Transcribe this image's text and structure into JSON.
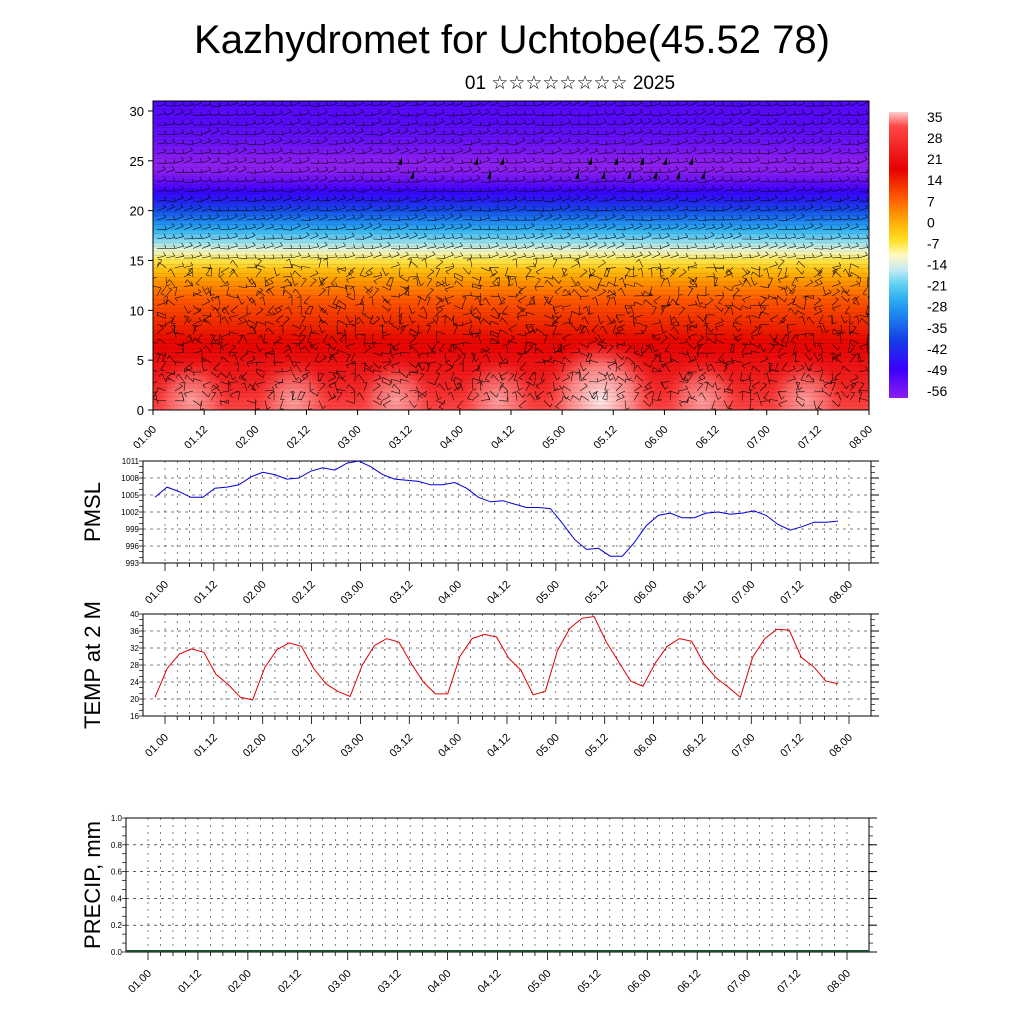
{
  "title": "Kazhydromet for Uchtobe(45.52 78)",
  "subtitle": "01 ☆☆☆☆☆☆☆☆ 2025",
  "colorbar": {
    "labels": [
      "35",
      "28",
      "21",
      "14",
      "7",
      "0",
      "-7",
      "-14",
      "-21",
      "-28",
      "-35",
      "-42",
      "-49",
      "-56"
    ]
  },
  "chart_data": [
    {
      "type": "heatmap",
      "name": "cross-section",
      "xlabel": "",
      "ylabel": "",
      "x_ticks": [
        "01.00",
        "01.12",
        "02.00",
        "02.12",
        "03.00",
        "03.12",
        "04.00",
        "04.12",
        "05.00",
        "05.12",
        "06.00",
        "06.12",
        "07.00",
        "07.12",
        "08.00"
      ],
      "y_ticks": [
        "0",
        "5",
        "10",
        "15",
        "20",
        "25",
        "30"
      ],
      "ylim": [
        0,
        31
      ],
      "value_range": [
        -56,
        35
      ],
      "note_series": "shaded temperature (degC) with wind barbs",
      "levels": [
        0,
        1,
        2,
        3,
        4,
        5,
        6,
        7,
        8,
        9,
        10,
        11,
        12,
        13,
        14,
        15,
        16,
        17,
        18,
        19,
        20,
        21,
        22,
        23,
        24,
        25,
        26,
        27,
        28,
        29,
        30,
        31
      ],
      "temperature_profile": [
        30,
        28,
        25,
        23,
        21,
        20,
        18,
        16,
        14,
        12,
        10,
        8,
        5,
        2,
        -2,
        -7,
        -12,
        -18,
        -24,
        -30,
        -36,
        -42,
        -47,
        -52,
        -56,
        -56,
        -54,
        -52,
        -51,
        -50,
        -50,
        -49
      ]
    },
    {
      "type": "line",
      "ylabel": "PMSL",
      "x_ticks": [
        "01.00",
        "01.12",
        "02.00",
        "02.12",
        "03.00",
        "03.12",
        "04.00",
        "04.12",
        "05.00",
        "05.12",
        "06.00",
        "06.12",
        "07.00",
        "07.12",
        "08.00"
      ],
      "y_ticks": [
        "1011",
        "1008",
        "1005",
        "1002",
        "999",
        "996",
        "993"
      ],
      "ylim": [
        993,
        1011
      ],
      "line_color": "#0000dd",
      "values": [
        1004.6,
        1006.4,
        1005.6,
        1004.6,
        1004.6,
        1006.2,
        1006.4,
        1006.8,
        1008.2,
        1009.0,
        1008.6,
        1007.8,
        1008.0,
        1009.2,
        1009.8,
        1009.4,
        1010.6,
        1011.0,
        1010.0,
        1008.6,
        1007.8,
        1007.6,
        1007.4,
        1006.8,
        1006.8,
        1007.2,
        1006.2,
        1004.6,
        1003.8,
        1004.0,
        1003.4,
        1002.8,
        1002.8,
        1002.6,
        1000.0,
        997.2,
        995.4,
        995.6,
        994.2,
        994.2,
        996.6,
        999.6,
        1001.4,
        1001.8,
        1001.0,
        1001.0,
        1001.8,
        1002.0,
        1001.6,
        1001.8,
        1002.2,
        1001.4,
        999.8,
        998.8,
        999.4,
        1000.2,
        1000.2,
        1000.4
      ]
    },
    {
      "type": "line",
      "ylabel": "TEMP at 2 M",
      "x_ticks": [
        "01.00",
        "01.12",
        "02.00",
        "02.12",
        "03.00",
        "03.12",
        "04.00",
        "04.12",
        "05.00",
        "05.12",
        "06.00",
        "06.12",
        "07.00",
        "07.12",
        "08.00"
      ],
      "y_ticks": [
        "40",
        "36",
        "32",
        "28",
        "24",
        "20",
        "16"
      ],
      "ylim": [
        16,
        40
      ],
      "line_color": "#dd0000",
      "values": [
        20.4,
        27.2,
        30.6,
        31.8,
        31.0,
        25.8,
        23.4,
        20.4,
        19.8,
        27.4,
        31.6,
        33.2,
        32.4,
        27.2,
        23.6,
        21.8,
        20.6,
        28.0,
        32.6,
        34.2,
        33.4,
        28.4,
        24.0,
        21.2,
        21.2,
        30.0,
        34.2,
        35.2,
        34.6,
        29.6,
        26.8,
        21.0,
        21.8,
        31.4,
        36.6,
        39.0,
        39.4,
        33.4,
        28.8,
        24.2,
        23.0,
        28.4,
        32.4,
        34.2,
        33.6,
        28.4,
        25.0,
        22.8,
        20.4,
        29.8,
        34.2,
        36.4,
        36.2,
        29.8,
        27.6,
        24.2,
        23.6
      ]
    },
    {
      "type": "bar",
      "ylabel": "PRECIP, mm",
      "x_ticks": [
        "01.00",
        "01.12",
        "02.00",
        "02.12",
        "03.00",
        "03.12",
        "04.00",
        "04.12",
        "05.00",
        "05.12",
        "06.00",
        "06.12",
        "07.00",
        "07.12",
        "08.00"
      ],
      "y_ticks": [
        "1.0",
        "0.8",
        "0.6",
        "0.4",
        "0.2",
        "0.0"
      ],
      "ylim": [
        0,
        1.0
      ],
      "values": []
    }
  ]
}
